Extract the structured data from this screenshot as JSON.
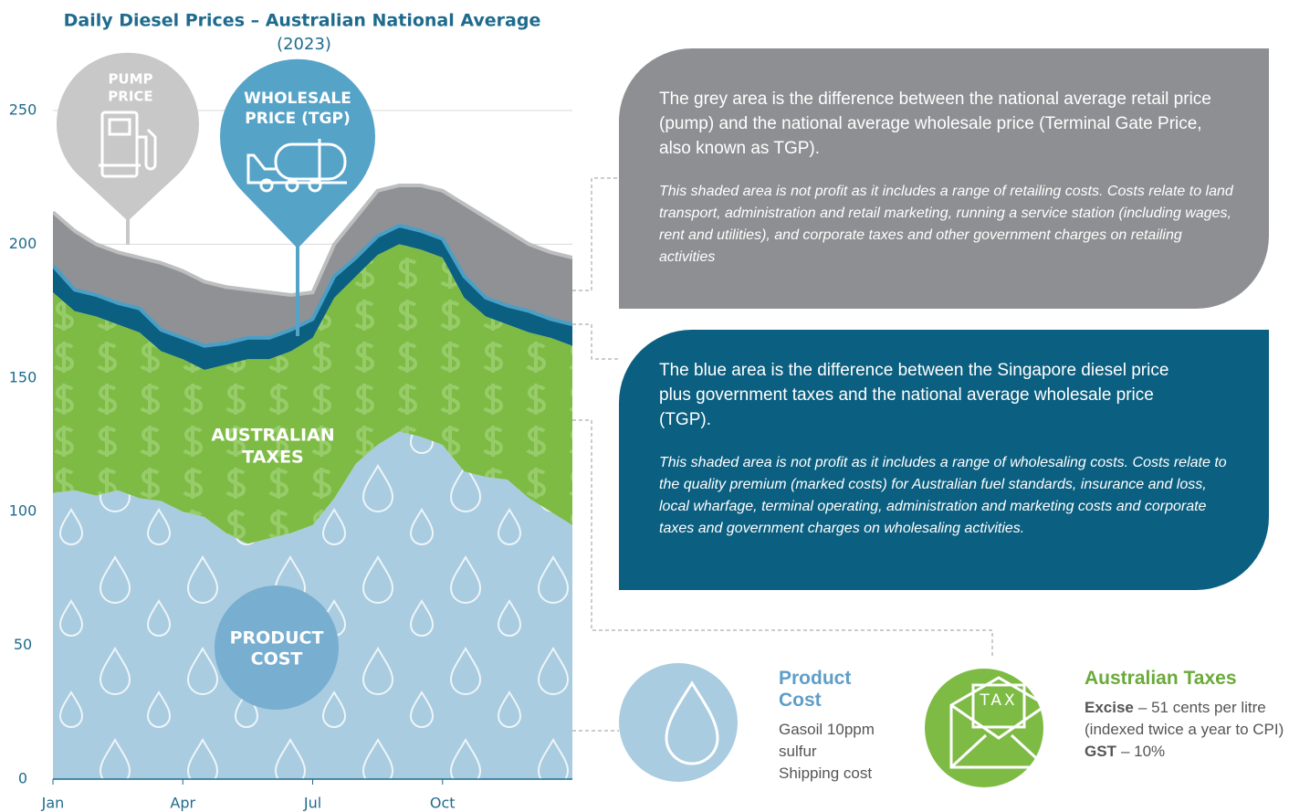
{
  "chart_data": {
    "type": "stacked-area",
    "title": "Daily Diesel Prices – Australian National Average",
    "subtitle": "(2023)",
    "categories": [
      "Jan",
      null,
      null,
      null,
      null,
      null,
      "Apr",
      null,
      null,
      null,
      null,
      null,
      "Jul",
      null,
      null,
      null,
      null,
      null,
      "Oct",
      null,
      null,
      null,
      null,
      null,
      null
    ],
    "series": [
      {
        "color": "#a9cce0",
        "values": [
          107,
          108,
          106,
          108,
          105,
          104,
          100,
          98,
          92,
          88,
          90,
          92,
          95,
          105,
          118,
          125,
          130,
          128,
          125,
          115,
          113,
          112,
          105,
          100,
          95
        ]
      },
      {
        "color": "#7dbb45",
        "values": [
          75,
          67,
          67,
          62,
          62,
          56,
          57,
          55,
          63,
          69,
          67,
          68,
          70,
          75,
          70,
          71,
          70,
          70,
          70,
          65,
          60,
          58,
          62,
          65,
          67
        ]
      },
      {
        "color": "#0b5f80",
        "values": [
          10,
          8,
          8,
          8,
          9,
          8,
          8,
          9,
          8,
          8,
          8,
          8,
          7,
          8,
          7,
          7,
          7,
          7,
          7,
          8,
          7,
          7,
          8,
          7,
          8
        ]
      },
      {
        "color": "#909194",
        "values": [
          20,
          22,
          19,
          19,
          19,
          25,
          25,
          24,
          21,
          18,
          17,
          13,
          10,
          12,
          15,
          17,
          15,
          17,
          18,
          27,
          30,
          28,
          25,
          25,
          25
        ]
      }
    ],
    "ylim": [
      0,
      250
    ],
    "yticks": [
      0,
      50,
      100,
      150,
      200,
      250
    ],
    "grid": true,
    "annotations": [
      {
        "lines": [
          "PUMP",
          "PRICE"
        ]
      },
      {
        "lines": [
          "WHOLESALE",
          "PRICE (TGP)"
        ]
      },
      {
        "lines": [
          "AUSTRALIAN",
          "TAXES"
        ]
      },
      {
        "lines": [
          "PRODUCT",
          "COST"
        ]
      }
    ]
  },
  "callouts": [
    {
      "text": "The grey area is the difference between the national average retail price (pump) and the national average wholesale price (Terminal Gate Price, also known as TGP).",
      "note": "This shaded area is not profit as it includes a range of retailing costs. Costs relate to land transport, administration and retail marketing, running a service station (including wages, rent and utilities), and corporate taxes and other government charges on retailing activities"
    },
    {
      "text": "The blue area is the difference between the Singapore diesel price plus government taxes and the national average wholesale price (TGP).",
      "note": "This shaded area is not profit as it includes a range of wholesaling costs. Costs relate to the quality premium (marked costs) for Australian fuel standards, insurance and loss, local wharfage, terminal operating, administration and marketing costs and corporate taxes and government charges on wholesaling activities."
    }
  ],
  "legend_items": [
    {
      "title": "Product Cost",
      "lines": [
        "Gasoil 10ppm sulfur",
        "Shipping cost"
      ]
    },
    {
      "title": "Australian Taxes",
      "icon_text": "TAX",
      "items": [
        {
          "term": "Excise",
          "text": "– 51 cents per litre (indexed twice a year to CPI)"
        },
        {
          "term": "GST",
          "text": "– 10%"
        }
      ]
    }
  ]
}
